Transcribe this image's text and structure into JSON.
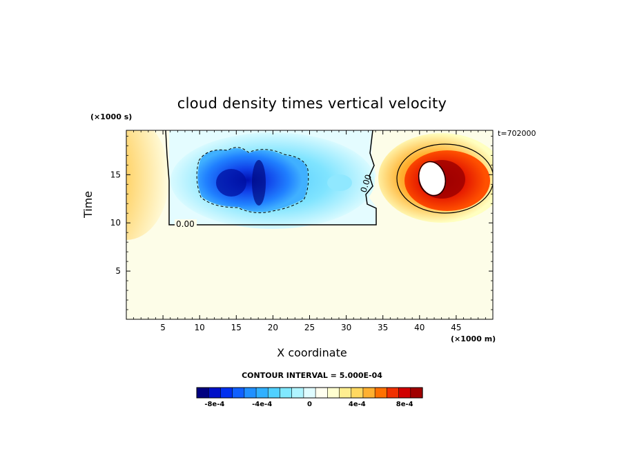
{
  "chart_data": {
    "type": "heatmap",
    "title": "cloud density times vertical velocity",
    "xlabel": "X coordinate",
    "ylabel": "Time",
    "x_unit": "(×1000 m)",
    "y_unit": "(×1000 s)",
    "annotation": "t=702000",
    "contour_interval": "CONTOUR INTERVAL = 5.000E-04",
    "xlim": [
      0,
      50
    ],
    "ylim": [
      0,
      19.6
    ],
    "x_ticks": [
      5,
      10,
      15,
      20,
      25,
      30,
      35,
      40,
      45
    ],
    "y_ticks": [
      5,
      10,
      15
    ],
    "background_level": 0.0002,
    "features": [
      {
        "type": "negative-plume",
        "x_range": [
          6,
          34
        ],
        "y_range": [
          10,
          19.6
        ],
        "min_value": -0.001,
        "core_center": [
          18,
          14.5
        ]
      },
      {
        "type": "positive-plume",
        "x_range": [
          35,
          50
        ],
        "y_range": [
          10.8,
          19.6
        ],
        "max_value": 0.0011,
        "core_center": [
          41.5,
          14.5
        ]
      },
      {
        "type": "positive-edge",
        "x_range": [
          0,
          5
        ],
        "y_range": [
          11,
          19.6
        ],
        "max_value": 0.0006,
        "core_center": [
          0.8,
          14.5
        ]
      }
    ],
    "contour_labels": [
      {
        "text": "0.00",
        "x": 8,
        "y": 10.0
      },
      {
        "text": "0.00",
        "x": 32.5,
        "y": 13.2
      }
    ],
    "colorbar": {
      "colors": [
        "#000080",
        "#0010c8",
        "#0030f0",
        "#1060ff",
        "#2090ff",
        "#30b0ff",
        "#50d0ff",
        "#80e8ff",
        "#b0f4ff",
        "#e0fcff",
        "#fffff0",
        "#ffffd0",
        "#ffee90",
        "#ffd860",
        "#ffb030",
        "#ff7000",
        "#f03000",
        "#d00000",
        "#a00000"
      ],
      "tick_labels": [
        "-8e-4",
        "-4e-4",
        "0",
        "4e-4",
        "8e-4"
      ],
      "tick_values": [
        -0.0008,
        -0.0004,
        0,
        0.0004,
        0.0008
      ],
      "range": [
        -0.00095,
        0.00095
      ]
    }
  }
}
